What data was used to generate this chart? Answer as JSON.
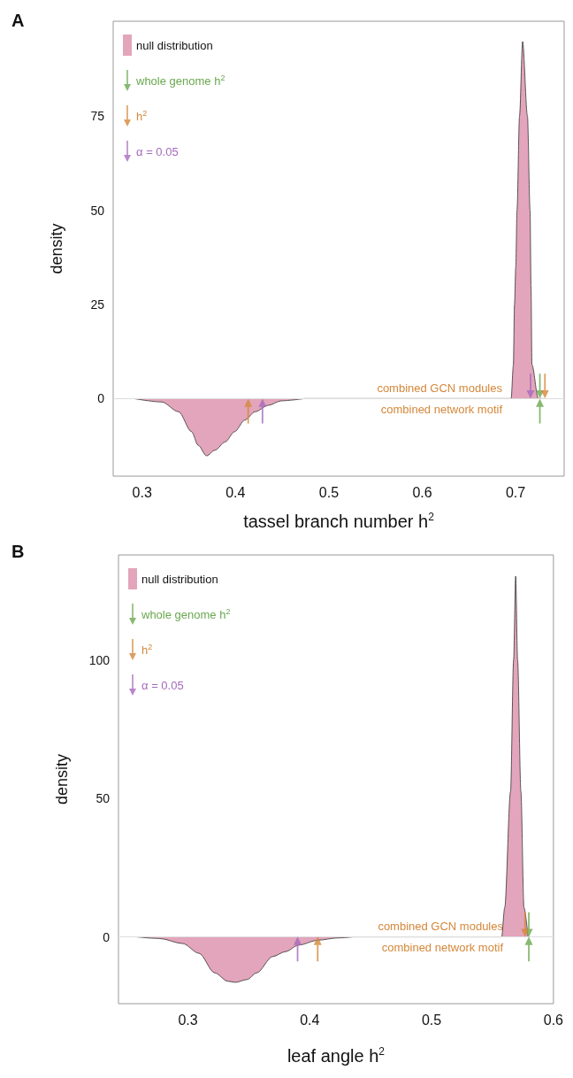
{
  "chart_data": [
    {
      "type": "area",
      "title": "A",
      "xlabel": "tassel branch number h$^{2}$",
      "ylabel": "density",
      "xlim": [
        0.269,
        0.752
      ],
      "xticks": [
        0.3,
        0.4,
        0.5,
        0.6,
        0.7
      ],
      "ylim": [
        -20.6,
        100.2
      ],
      "yticks": [
        0,
        25,
        50,
        75
      ],
      "grid": false,
      "legend": "top left",
      "ref_lines": [
        {
          "axis": "y",
          "value": 0,
          "color": "#dddddd"
        }
      ],
      "annotations": [
        "combined GCN modules",
        "combined network motif"
      ],
      "series": [
        {
          "name": "null distribution",
          "color": "#e3a5bb",
          "x": [
            0.474,
            0.6952,
            0.6976,
            0.6988,
            0.7002,
            0.7015,
            0.7042,
            0.7075,
            0.7127,
            0.7155,
            0.7165,
            0.7175,
            0.7243,
            0.73
          ],
          "values": [
            0,
            0,
            8.8,
            25,
            35,
            50,
            75,
            94.8,
            75,
            50,
            30,
            9,
            0,
            0
          ]
        },
        {
          "color": "#e3a5bb",
          "x": [
            0.291,
            0.321,
            0.339,
            0.353,
            0.36,
            0.369,
            0.378,
            0.389,
            0.399,
            0.41,
            0.421,
            0.435,
            0.449,
            0.474
          ],
          "values": [
            0,
            -0.9,
            -3.5,
            -8.8,
            -12.4,
            -15.2,
            -13.7,
            -11.5,
            -8.8,
            -5.7,
            -3.5,
            -1.8,
            -0.6,
            0
          ]
        },
        {
          "type": "scatter",
          "name": "whole genome h$^{2}$",
          "color": "#6aa84f",
          "x": [
            0.726,
            0.726
          ],
          "values": [
            3.3,
            -3.3
          ]
        },
        {
          "type": "scatter",
          "name": "h$^{2}$",
          "color": "#d4873a",
          "x": [
            0.7314,
            0.4136
          ],
          "values": [
            3.3,
            -3.3
          ]
        },
        {
          "type": "scatter",
          "name": "α = 0.05",
          "color": "#a569bd",
          "x": [
            0.716,
            0.4289
          ],
          "values": [
            3.3,
            -3.3
          ]
        }
      ]
    },
    {
      "type": "area",
      "title": "B",
      "xlabel": "leaf angle h$^{2}$",
      "ylabel": "density",
      "xlim": [
        0.243,
        0.6
      ],
      "xticks": [
        0.3,
        0.4,
        0.5,
        0.6
      ],
      "ylim": [
        -24.1,
        137.9
      ],
      "yticks": [
        0,
        50,
        100
      ],
      "grid": false,
      "legend": "top left",
      "ref_lines": [
        {
          "axis": "y",
          "value": 0,
          "color": "#dddddd"
        }
      ],
      "annotations": [
        "combined GCN modules",
        "combined network motif"
      ],
      "series": [
        {
          "name": "null distribution",
          "color": "#e3a5bb",
          "x": [
            0.4357,
            0.5575,
            0.56,
            0.5648,
            0.5673,
            0.569,
            0.5706,
            0.5733,
            0.5758,
            0.5792
          ],
          "values": [
            0,
            0,
            10.6,
            52.5,
            100,
            130.2,
            100,
            52.5,
            10.6,
            0
          ]
        },
        {
          "color": "#e3a5bb",
          "x": [
            0.258,
            0.277,
            0.2957,
            0.309,
            0.322,
            0.3327,
            0.339,
            0.3485,
            0.3564,
            0.3696,
            0.3802,
            0.3907,
            0.4065,
            0.4224,
            0.4357
          ],
          "values": [
            0,
            -0.6,
            -2.4,
            -5.9,
            -13,
            -16,
            -16.4,
            -15.4,
            -13,
            -7.1,
            -5.3,
            -3,
            -1.2,
            -0.4,
            0
          ]
        },
        {
          "type": "scatter",
          "name": "whole genome h$^{2}$",
          "color": "#6aa84f",
          "x": [
            0.5798,
            0.5798
          ],
          "values": [
            4.4,
            -4.4
          ]
        },
        {
          "type": "scatter",
          "name": "h$^{2}$",
          "color": "#d4873a",
          "x": [
            0.5767,
            0.4065
          ],
          "values": [
            4.4,
            -4.4
          ]
        },
        {
          "type": "scatter",
          "name": "α = 0.05",
          "color": "#a569bd",
          "x": [
            0.39
          ],
          "values": [
            -4.4
          ]
        }
      ]
    }
  ]
}
